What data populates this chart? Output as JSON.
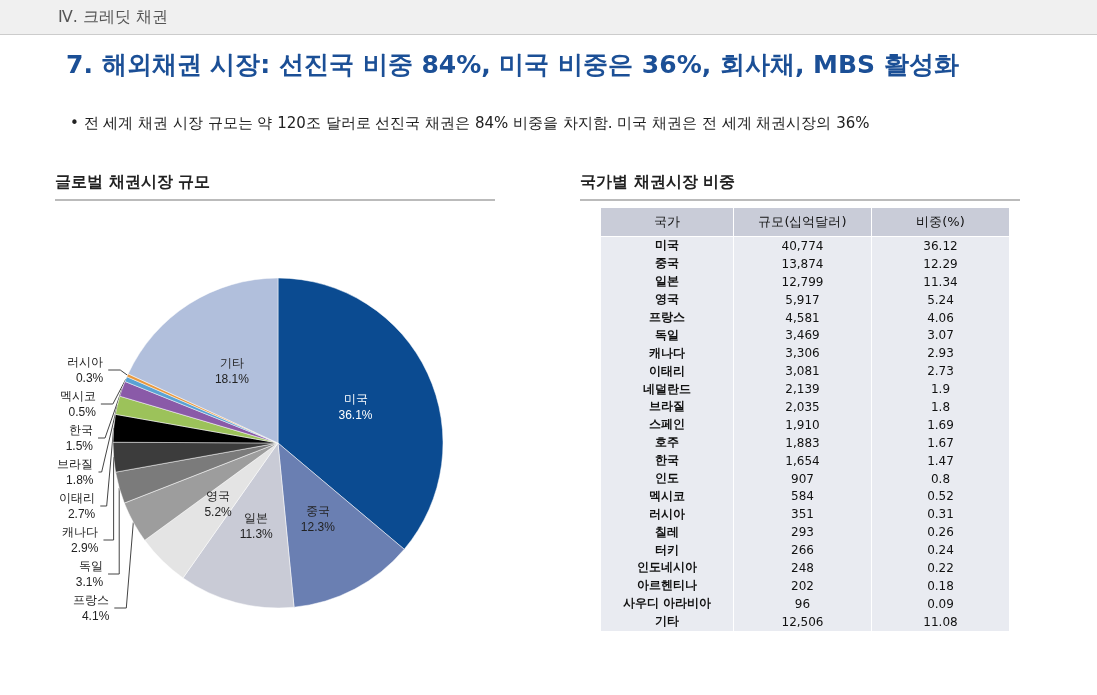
{
  "chart_data": [
    {
      "type": "pie",
      "title": "글로벌 채권시장 규모",
      "annotations": [
        "Ⅳ. 크레딧 채권",
        "7. 해외채권 시장: 선진국 비중 84%, 미국 비중은 36%, 회사채, MBS 활성화",
        "• 전 세계 채권 시장 규모는 약 120조 달러로 선진국 채권은 84% 비중을 차지함. 미국 채권은 전 세계 채권시장의 36%"
      ],
      "categories": [
        "미국",
        "중국",
        "일본",
        "영국",
        "프랑스",
        "독일",
        "캐나다",
        "이태리",
        "브라질",
        "한국",
        "멕시코",
        "러시아",
        "기타"
      ],
      "values": [
        36.1,
        12.3,
        11.3,
        5.2,
        4.1,
        3.1,
        2.9,
        2.7,
        1.8,
        1.5,
        0.5,
        0.3,
        18.1
      ],
      "value_labels": [
        "36.1%",
        "12.3%",
        "11.3%",
        "5.2%",
        "4.1%",
        "3.1%",
        "2.9%",
        "2.7%",
        "1.8%",
        "1.5%",
        "0.5%",
        "0.3%",
        "18.1%"
      ],
      "colors": [
        "#0b4b91",
        "#6a7fb2",
        "#c9cbd6",
        "#e4e4e4",
        "#9d9d9d",
        "#7b7b7b",
        "#3c3c3c",
        "#000000",
        "#9cc25a",
        "#8a5aa8",
        "#5aa2d4",
        "#e8983e",
        "#b1bfdc"
      ]
    },
    {
      "type": "other",
      "title": "국가별 채권시장 비중",
      "xlabel": "국가",
      "data_labels": true,
      "categories": [
        "미국",
        "중국",
        "일본",
        "영국",
        "프랑스",
        "독일",
        "캐나다",
        "이태리",
        "네덜란드",
        "브라질",
        "스페인",
        "호주",
        "한국",
        "인도",
        "멕시코",
        "러시아",
        "칠레",
        "터키",
        "인도네시아",
        "아르헨티나",
        "사우디 아라비아",
        "기타"
      ],
      "series": [
        {
          "name": "규모(십억달러)",
          "values": [
            40774,
            13874,
            12799,
            5917,
            4581,
            3469,
            3306,
            3081,
            2139,
            2035,
            1910,
            1883,
            1654,
            907,
            584,
            351,
            293,
            266,
            248,
            202,
            96,
            12506
          ],
          "value_labels": [
            "40,774",
            "13,874",
            "12,799",
            "5,917",
            "4,581",
            "3,469",
            "3,306",
            "3,081",
            "2,139",
            "2,035",
            "1,910",
            "1,883",
            "1,654",
            "907",
            "584",
            "351",
            "293",
            "266",
            "248",
            "202",
            "96",
            "12,506"
          ]
        },
        {
          "name": "비중(%)",
          "values": [
            36.12,
            12.29,
            11.34,
            5.24,
            4.06,
            3.07,
            2.93,
            2.73,
            1.9,
            1.8,
            1.69,
            1.67,
            1.47,
            0.8,
            0.52,
            0.31,
            0.26,
            0.24,
            0.22,
            0.18,
            0.09,
            11.08
          ]
        }
      ]
    }
  ]
}
